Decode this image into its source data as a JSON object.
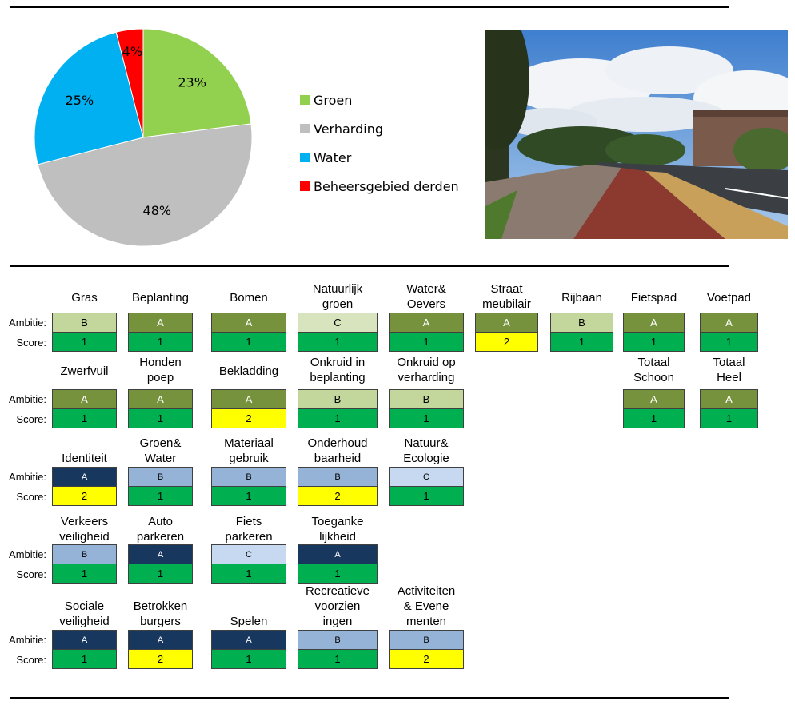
{
  "chart_data": {
    "type": "pie",
    "slices": [
      {
        "name": "Groen",
        "value": 23,
        "label": "23%",
        "color": "#92d050"
      },
      {
        "name": "Verharding",
        "value": 48,
        "label": "48%",
        "color": "#bfbfbf"
      },
      {
        "name": "Water",
        "value": 25,
        "label": "25%",
        "color": "#00b0f0"
      },
      {
        "name": "Beheersgebied derden",
        "value": 4,
        "label": "4%",
        "color": "#ff0000"
      }
    ],
    "legend_position": "right"
  },
  "labels": {
    "ambitie": "Ambitie:",
    "score": "Score:"
  },
  "colors": {
    "A_green": "#76923c",
    "B_green": "#c3d69b",
    "C_green": "#d7e4bd",
    "A_blue": "#17375e",
    "B_blue": "#95b3d7",
    "C_blue": "#c6d9f1",
    "score_1": "#00b050",
    "score_2": "#ffff00"
  },
  "cards": [
    {
      "label": [
        "Gras"
      ],
      "ambitie": "B",
      "score": "1"
    },
    {
      "label": [
        "Beplanting"
      ],
      "ambitie": "A",
      "score": "1"
    },
    {
      "label": [
        "Bomen"
      ],
      "ambitie": "A",
      "score": "1"
    },
    {
      "label": [
        "Natuurlijk",
        "groen"
      ],
      "ambitie": "C",
      "score": "1"
    },
    {
      "label": [
        "Water&",
        "Oevers"
      ],
      "ambitie": "A",
      "score": "1"
    },
    {
      "label": [
        "Straat",
        "meubilair"
      ],
      "ambitie": "A",
      "score": "2"
    },
    {
      "label": [
        "Rijbaan"
      ],
      "ambitie": "B",
      "score": "1"
    },
    {
      "label": [
        "Fietspad"
      ],
      "ambitie": "A",
      "score": "1"
    },
    {
      "label": [
        "Voetpad"
      ],
      "ambitie": "A",
      "score": "1"
    },
    {
      "label": [
        "Zwerfvuil"
      ],
      "ambitie": "A",
      "score": "1"
    },
    {
      "label": [
        "Honden",
        "poep"
      ],
      "ambitie": "A",
      "score": "1"
    },
    {
      "label": [
        "Bekladding"
      ],
      "ambitie": "A",
      "score": "2"
    },
    {
      "label": [
        "Onkruid in",
        "beplanting"
      ],
      "ambitie": "B",
      "score": "1"
    },
    {
      "label": [
        "Onkruid op",
        "verharding"
      ],
      "ambitie": "B",
      "score": "1"
    },
    {
      "label": [
        "Totaal",
        "Schoon"
      ],
      "ambitie": "A",
      "score": "1"
    },
    {
      "label": [
        "Totaal",
        "Heel"
      ],
      "ambitie": "A",
      "score": "1"
    },
    {
      "label": [
        "Identiteit"
      ],
      "ambitie": "A",
      "score": "2"
    },
    {
      "label": [
        "Groen&",
        "Water"
      ],
      "ambitie": "B",
      "score": "1"
    },
    {
      "label": [
        "Materiaal",
        "gebruik"
      ],
      "ambitie": "B",
      "score": "1"
    },
    {
      "label": [
        "Onderhoud",
        "baarheid"
      ],
      "ambitie": "B",
      "score": "2"
    },
    {
      "label": [
        "Natuur&",
        "Ecologie"
      ],
      "ambitie": "C",
      "score": "1"
    },
    {
      "label": [
        "Verkeers",
        "veiligheid"
      ],
      "ambitie": "B",
      "score": "1"
    },
    {
      "label": [
        "Auto",
        "parkeren"
      ],
      "ambitie": "A",
      "score": "1"
    },
    {
      "label": [
        "Fiets",
        "parkeren"
      ],
      "ambitie": "C",
      "score": "1"
    },
    {
      "label": [
        "Toeganke",
        "lijkheid"
      ],
      "ambitie": "A",
      "score": "1"
    },
    {
      "label": [
        "Sociale",
        "veiligheid"
      ],
      "ambitie": "A",
      "score": "1"
    },
    {
      "label": [
        "Betrokken",
        "burgers"
      ],
      "ambitie": "A",
      "score": "2"
    },
    {
      "label": [
        "Spelen"
      ],
      "ambitie": "A",
      "score": "1"
    },
    {
      "label": [
        "Recreatieve",
        "voorzien",
        "ingen"
      ],
      "ambitie": "B",
      "score": "1"
    },
    {
      "label": [
        "Activiteiten",
        "& Evene",
        "menten"
      ],
      "ambitie": "B",
      "score": "2"
    }
  ]
}
